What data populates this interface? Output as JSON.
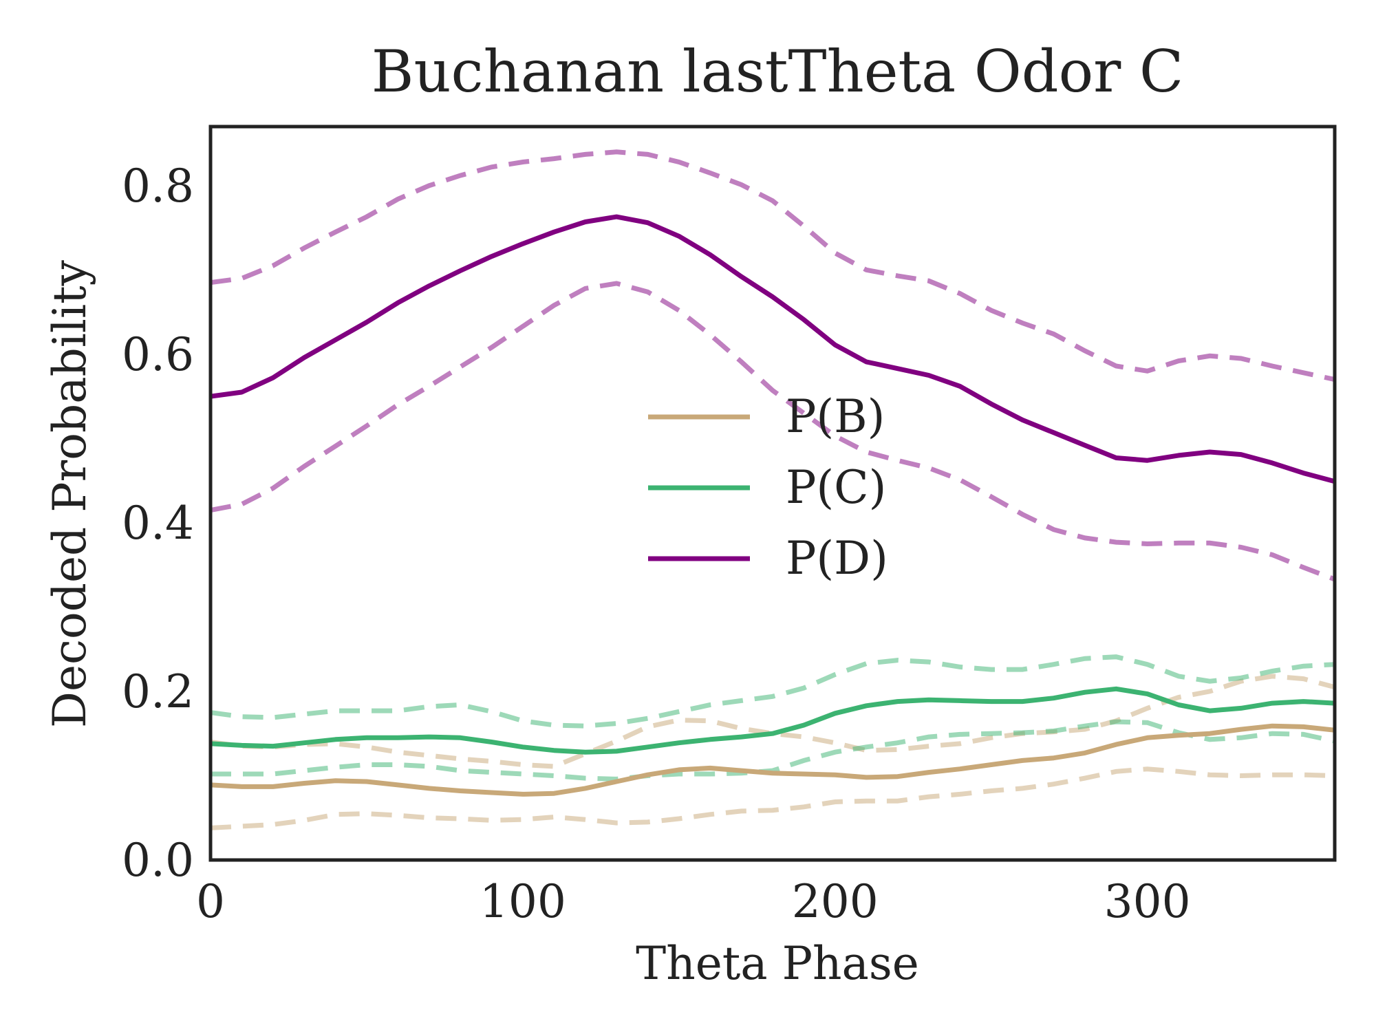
{
  "chart_data": {
    "type": "line",
    "title": "Buchanan lastTheta Odor C",
    "xlabel": "Theta Phase",
    "ylabel": "Decoded Probability",
    "xlim": [
      0,
      360
    ],
    "ylim": [
      0,
      0.87
    ],
    "xticks": [
      0,
      100,
      200,
      300
    ],
    "yticks": [
      0.0,
      0.2,
      0.4,
      0.6,
      0.8
    ],
    "xtick_labels": [
      "0",
      "100",
      "200",
      "300"
    ],
    "ytick_labels": [
      "0.0",
      "0.2",
      "0.4",
      "0.6",
      "0.8"
    ],
    "grid": false,
    "legend_position": "center",
    "x": [
      0,
      10,
      20,
      30,
      40,
      50,
      60,
      70,
      80,
      90,
      100,
      110,
      120,
      130,
      140,
      150,
      160,
      170,
      180,
      190,
      200,
      210,
      220,
      230,
      240,
      250,
      260,
      270,
      280,
      290,
      300,
      310,
      320,
      330,
      340,
      350,
      360
    ],
    "series": [
      {
        "name": "P(B)",
        "color": "#c8a878",
        "values": [
          0.089,
          0.087,
          0.087,
          0.091,
          0.094,
          0.093,
          0.089,
          0.085,
          0.082,
          0.08,
          0.078,
          0.079,
          0.085,
          0.093,
          0.101,
          0.107,
          0.109,
          0.106,
          0.103,
          0.102,
          0.101,
          0.098,
          0.099,
          0.104,
          0.108,
          0.113,
          0.118,
          0.121,
          0.127,
          0.137,
          0.145,
          0.148,
          0.15,
          0.155,
          0.159,
          0.158,
          0.154
        ],
        "upper": [
          0.14,
          0.135,
          0.134,
          0.137,
          0.138,
          0.134,
          0.128,
          0.124,
          0.12,
          0.117,
          0.113,
          0.111,
          0.126,
          0.141,
          0.158,
          0.166,
          0.165,
          0.156,
          0.15,
          0.146,
          0.139,
          0.13,
          0.131,
          0.135,
          0.138,
          0.145,
          0.15,
          0.152,
          0.155,
          0.165,
          0.18,
          0.193,
          0.2,
          0.212,
          0.218,
          0.215,
          0.205
        ],
        "lower": [
          0.038,
          0.04,
          0.042,
          0.047,
          0.054,
          0.055,
          0.053,
          0.05,
          0.049,
          0.047,
          0.048,
          0.051,
          0.048,
          0.044,
          0.045,
          0.049,
          0.054,
          0.058,
          0.059,
          0.063,
          0.069,
          0.07,
          0.07,
          0.075,
          0.078,
          0.082,
          0.085,
          0.09,
          0.097,
          0.105,
          0.108,
          0.105,
          0.101,
          0.1,
          0.101,
          0.101,
          0.1
        ]
      },
      {
        "name": "P(C)",
        "color": "#3cb371",
        "values": [
          0.138,
          0.136,
          0.135,
          0.139,
          0.143,
          0.145,
          0.145,
          0.146,
          0.145,
          0.14,
          0.134,
          0.13,
          0.128,
          0.129,
          0.134,
          0.139,
          0.143,
          0.146,
          0.15,
          0.16,
          0.174,
          0.183,
          0.188,
          0.19,
          0.189,
          0.188,
          0.188,
          0.192,
          0.199,
          0.203,
          0.197,
          0.184,
          0.177,
          0.18,
          0.186,
          0.188,
          0.186
        ],
        "upper": [
          0.175,
          0.17,
          0.169,
          0.173,
          0.177,
          0.177,
          0.177,
          0.182,
          0.184,
          0.176,
          0.165,
          0.16,
          0.159,
          0.162,
          0.168,
          0.176,
          0.184,
          0.189,
          0.194,
          0.204,
          0.22,
          0.233,
          0.237,
          0.235,
          0.229,
          0.226,
          0.226,
          0.232,
          0.239,
          0.241,
          0.232,
          0.218,
          0.212,
          0.216,
          0.224,
          0.23,
          0.232
        ],
        "lower": [
          0.102,
          0.102,
          0.102,
          0.106,
          0.11,
          0.113,
          0.113,
          0.111,
          0.106,
          0.104,
          0.102,
          0.1,
          0.097,
          0.096,
          0.1,
          0.102,
          0.102,
          0.103,
          0.106,
          0.118,
          0.128,
          0.134,
          0.139,
          0.146,
          0.149,
          0.15,
          0.151,
          0.153,
          0.159,
          0.164,
          0.163,
          0.151,
          0.143,
          0.145,
          0.15,
          0.149,
          0.141
        ]
      },
      {
        "name": "P(D)",
        "color": "#800080",
        "values": [
          0.55,
          0.555,
          0.572,
          0.596,
          0.617,
          0.638,
          0.661,
          0.681,
          0.699,
          0.716,
          0.731,
          0.745,
          0.757,
          0.763,
          0.756,
          0.74,
          0.718,
          0.692,
          0.668,
          0.641,
          0.611,
          0.591,
          0.583,
          0.575,
          0.562,
          0.541,
          0.522,
          0.507,
          0.492,
          0.477,
          0.474,
          0.48,
          0.484,
          0.481,
          0.471,
          0.459,
          0.449
        ],
        "upper": [
          0.685,
          0.69,
          0.705,
          0.726,
          0.745,
          0.763,
          0.784,
          0.8,
          0.812,
          0.822,
          0.828,
          0.832,
          0.837,
          0.84,
          0.837,
          0.828,
          0.815,
          0.801,
          0.782,
          0.752,
          0.72,
          0.7,
          0.693,
          0.687,
          0.672,
          0.652,
          0.637,
          0.624,
          0.604,
          0.586,
          0.58,
          0.592,
          0.598,
          0.595,
          0.586,
          0.578,
          0.57
        ],
        "lower": [
          0.415,
          0.422,
          0.441,
          0.467,
          0.491,
          0.515,
          0.54,
          0.562,
          0.585,
          0.608,
          0.633,
          0.658,
          0.678,
          0.684,
          0.674,
          0.652,
          0.623,
          0.591,
          0.557,
          0.53,
          0.503,
          0.484,
          0.474,
          0.465,
          0.451,
          0.431,
          0.41,
          0.392,
          0.382,
          0.377,
          0.375,
          0.376,
          0.376,
          0.371,
          0.362,
          0.347,
          0.333
        ]
      }
    ]
  }
}
